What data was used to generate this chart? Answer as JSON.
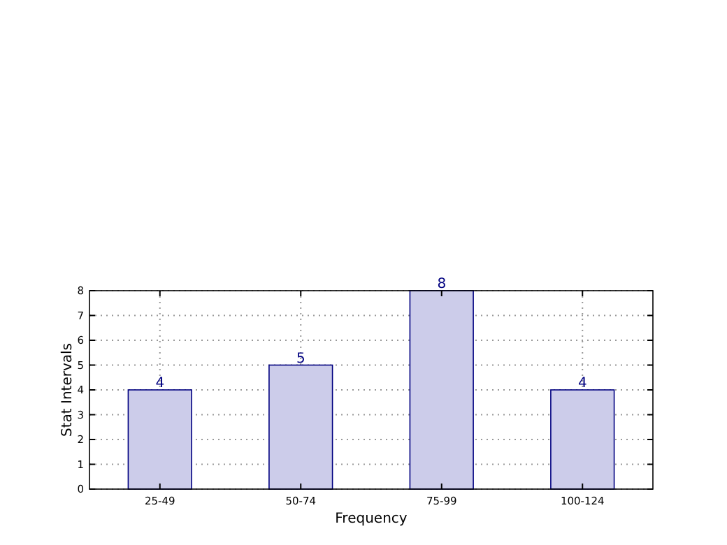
{
  "chart_data": {
    "type": "bar",
    "xlabel": "Frequency",
    "ylabel": "Stat Intervals",
    "categories": [
      "25-49",
      "50-74",
      "75-99",
      "100-124"
    ],
    "values": [
      4,
      5,
      8,
      4
    ],
    "color": "#ccccea",
    "ylim": [
      0,
      8
    ],
    "yticks": [
      0,
      1,
      2,
      3,
      4,
      5,
      6,
      7,
      8
    ],
    "grid": true,
    "data_labels": true
  }
}
